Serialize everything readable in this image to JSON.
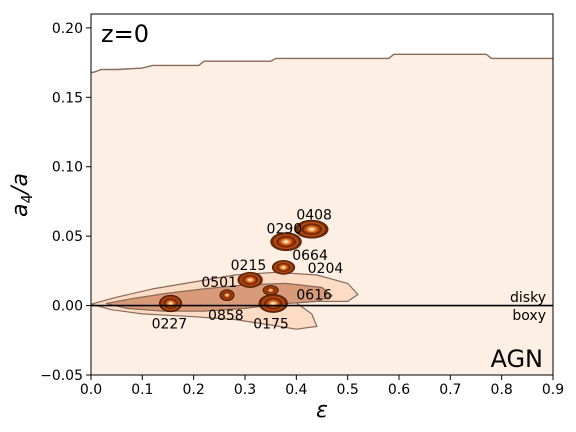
{
  "chart_data": {
    "type": "contour",
    "title": "",
    "xlabel": "ε",
    "ylabel_main": "a",
    "ylabel_sub": "4",
    "ylabel_tail": "/a",
    "xlim": [
      0.0,
      0.9
    ],
    "ylim": [
      -0.05,
      0.21
    ],
    "x_ticks": [
      0.0,
      0.1,
      0.2,
      0.3,
      0.4,
      0.5,
      0.6,
      0.7,
      0.8,
      0.9
    ],
    "x_tick_labels": [
      "0.0",
      "0.1",
      "0.2",
      "0.3",
      "0.4",
      "0.5",
      "0.6",
      "0.7",
      "0.8",
      "0.9"
    ],
    "y_ticks": [
      -0.05,
      0.0,
      0.05,
      0.1,
      0.15,
      0.2
    ],
    "y_tick_labels": [
      "−0.05",
      "0.00",
      "0.05",
      "0.10",
      "0.15",
      "0.20"
    ],
    "grid": false,
    "annotations": {
      "redshift": "z=0",
      "model": "AGN",
      "disky": "disky",
      "boxy": "boxy"
    },
    "colors": {
      "background_fill": "#fdefe3",
      "contour_1": "#fcdcc4",
      "contour_2": "#d99a7a",
      "outline": "#8a6a58",
      "galaxy_dark": "#6b2a07",
      "galaxy_mid": "#b8470f",
      "galaxy_light": "#f08a3c"
    },
    "reference_line": {
      "y": 0.0,
      "x": [
        0.0,
        0.9
      ]
    },
    "outer_contour_boundary": {
      "x": [
        0.0,
        0.005,
        0.02,
        0.05,
        0.1,
        0.12,
        0.15,
        0.21,
        0.22,
        0.35,
        0.36,
        0.58,
        0.59,
        0.77,
        0.78,
        0.9
      ],
      "y": [
        0.168,
        0.168,
        0.17,
        0.17,
        0.171,
        0.173,
        0.173,
        0.173,
        0.176,
        0.176,
        0.178,
        0.178,
        0.181,
        0.181,
        0.178,
        0.178
      ]
    },
    "galaxies": [
      {
        "id": "0408",
        "x": 0.43,
        "y": 0.055,
        "rx": 0.032,
        "ry": 0.0065
      },
      {
        "id": "0290",
        "x": 0.38,
        "y": 0.046,
        "rx": 0.03,
        "ry": 0.0065
      },
      {
        "id": "0664",
        "x": 0.375,
        "y": 0.0275,
        "rx": 0.022,
        "ry": 0.005
      },
      {
        "id": "0215",
        "x": 0.31,
        "y": 0.0185,
        "rx": 0.024,
        "ry": 0.0055
      },
      {
        "id": "0204",
        "x": 0.35,
        "y": 0.011,
        "rx": 0.015,
        "ry": 0.0035
      },
      {
        "id": "0501",
        "x": 0.265,
        "y": 0.0075,
        "rx": 0.014,
        "ry": 0.004
      },
      {
        "id": "0616",
        "x": 0.355,
        "y": 0.0015,
        "rx": 0.028,
        "ry": 0.0065
      },
      {
        "id": "0227",
        "x": 0.155,
        "y": 0.0015,
        "rx": 0.022,
        "ry": 0.006
      },
      {
        "id": "0858",
        "x": 0.265,
        "y": 0.007,
        "rx": 0.0,
        "ry": 0.0
      },
      {
        "id": "0175",
        "x": 0.355,
        "y": 0.0,
        "rx": 0.0,
        "ry": 0.0
      }
    ],
    "galaxy_labels": [
      {
        "text": "0408",
        "x": 0.4,
        "y": 0.062
      },
      {
        "text": "0290",
        "x": 0.342,
        "y": 0.052
      },
      {
        "text": "0664",
        "x": 0.392,
        "y": 0.033
      },
      {
        "text": "0204",
        "x": 0.422,
        "y": 0.0235
      },
      {
        "text": "0215",
        "x": 0.272,
        "y": 0.0255
      },
      {
        "text": "0501",
        "x": 0.215,
        "y": 0.0135
      },
      {
        "text": "0616",
        "x": 0.4,
        "y": 0.0045
      },
      {
        "text": "0227",
        "x": 0.118,
        "y": -0.0165
      },
      {
        "text": "0858",
        "x": 0.228,
        "y": -0.0105
      },
      {
        "text": "0175",
        "x": 0.316,
        "y": -0.0165
      }
    ],
    "contour_region_outer": {
      "x": [
        0.0,
        0.05,
        0.12,
        0.2,
        0.28,
        0.36,
        0.44,
        0.5,
        0.52,
        0.5,
        0.44,
        0.4,
        0.43,
        0.44,
        0.4,
        0.35,
        0.28,
        0.2,
        0.1,
        0.04,
        0.0
      ],
      "y": [
        0.001,
        0.006,
        0.012,
        0.017,
        0.022,
        0.024,
        0.022,
        0.016,
        0.008,
        0.003,
        0.003,
        0.002,
        -0.006,
        -0.015,
        -0.017,
        -0.014,
        -0.01,
        -0.008,
        -0.006,
        -0.003,
        0.001
      ]
    },
    "contour_region_inner": {
      "x": [
        0.03,
        0.08,
        0.15,
        0.22,
        0.3,
        0.38,
        0.45,
        0.47,
        0.44,
        0.38,
        0.3,
        0.22,
        0.14,
        0.07,
        0.03
      ],
      "y": [
        0.0015,
        0.005,
        0.009,
        0.012,
        0.015,
        0.016,
        0.013,
        0.007,
        0.003,
        0.0015,
        -0.002,
        -0.004,
        -0.004,
        -0.002,
        0.0015
      ]
    }
  }
}
